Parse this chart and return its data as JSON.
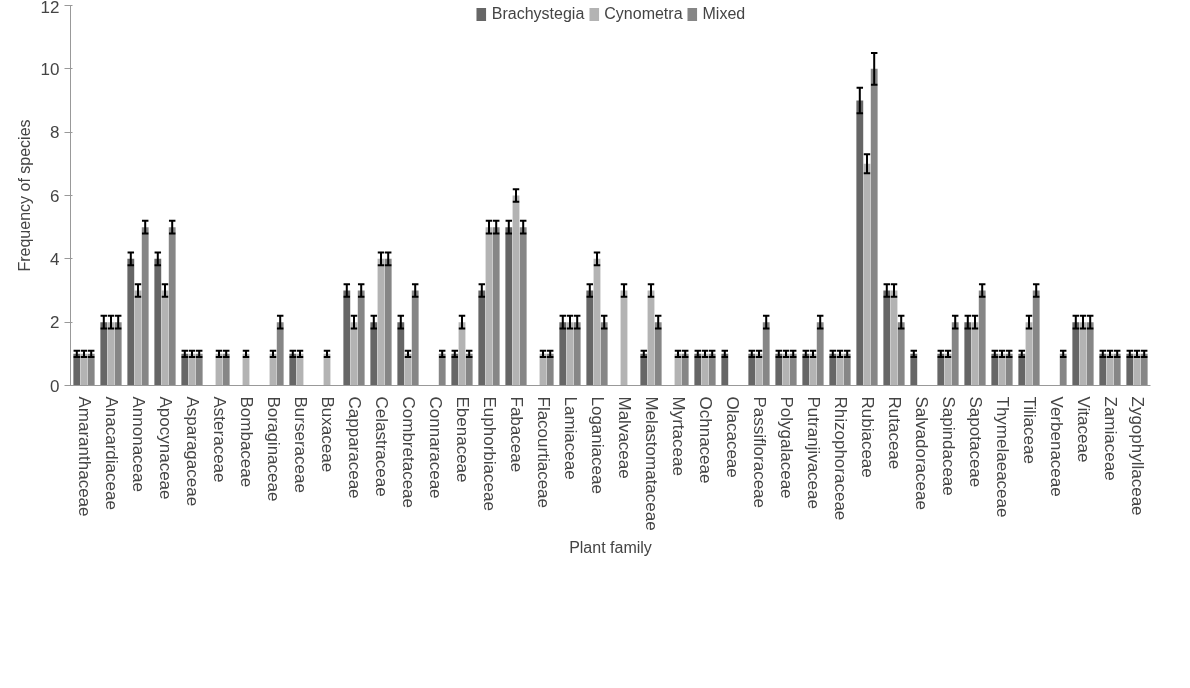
{
  "chart_data": {
    "type": "bar",
    "xlabel": "Plant family",
    "ylabel": "Frequency of species",
    "categories": [
      "Amaranthaceae",
      "Anacardiaceae",
      "Annonaceae",
      "Apocynaceae",
      "Asparagaceae",
      "Asteraceae",
      "Bombaceae",
      "Boraginaceae",
      "Burseraceae",
      "Buxaceae",
      "Capparaceae",
      "Celastraceae",
      "Combretaceae",
      "Connaraceae",
      "Ebenaceae",
      "Euphorbiaceae",
      "Fabaceae",
      "Flacourtiaceae",
      "Lamiaceae",
      "Loganiaceae",
      "Malvaceae",
      "Melastomataceae",
      "Myrtaceae",
      "Ochnaceae",
      "Olacaceae",
      "Passifloraceae",
      "Polygalaceae",
      "Putranjivaceae",
      "Rhizophoraceae",
      "Rubiaceae",
      "Rutaceae",
      "Salvadoraceae",
      "Sapindaceae",
      "Sapotaceae",
      "Thymelaeaceae",
      "Tiliaceae",
      "Verbenaceae",
      "Vitaceae",
      "Zamiaceae",
      "Zygophyllaceae"
    ],
    "series": [
      {
        "name": "Brachystegia",
        "color": "#666666",
        "values": [
          1,
          2,
          4,
          4,
          1,
          null,
          null,
          null,
          1,
          null,
          3,
          2,
          2,
          null,
          1,
          3,
          5,
          null,
          2,
          3,
          null,
          1,
          null,
          1,
          1,
          1,
          1,
          1,
          1,
          9,
          3,
          1,
          1,
          2,
          1,
          1,
          null,
          2,
          1,
          1
        ],
        "errors": [
          0.1,
          0.2,
          0.2,
          0.2,
          0.1,
          null,
          null,
          null,
          0.1,
          null,
          0.2,
          0.2,
          0.2,
          null,
          0.1,
          0.2,
          0.2,
          null,
          0.2,
          0.2,
          null,
          0.1,
          null,
          0.1,
          0.1,
          0.1,
          0.1,
          0.1,
          0.1,
          0.4,
          0.2,
          0.1,
          0.1,
          0.2,
          0.1,
          0.1,
          null,
          0.2,
          0.1,
          0.1
        ]
      },
      {
        "name": "Cynometra",
        "color": "#b3b3b3",
        "values": [
          1,
          2,
          3,
          3,
          1,
          1,
          1,
          1,
          1,
          1,
          2,
          4,
          1,
          null,
          2,
          5,
          6,
          1,
          2,
          4,
          3,
          3,
          1,
          1,
          null,
          1,
          1,
          1,
          1,
          7,
          3,
          null,
          1,
          2,
          1,
          2,
          null,
          2,
          1,
          1
        ],
        "errors": [
          0.1,
          0.2,
          0.2,
          0.2,
          0.1,
          0.1,
          0.1,
          0.1,
          0.1,
          0.1,
          0.2,
          0.2,
          0.1,
          null,
          0.2,
          0.2,
          0.2,
          0.1,
          0.2,
          0.2,
          0.2,
          0.2,
          0.1,
          0.1,
          null,
          0.1,
          0.1,
          0.1,
          0.1,
          0.3,
          0.2,
          null,
          0.1,
          0.2,
          0.1,
          0.2,
          null,
          0.2,
          0.1,
          0.1
        ]
      },
      {
        "name": "Mixed",
        "color": "#868686",
        "values": [
          1,
          2,
          5,
          5,
          1,
          1,
          null,
          2,
          null,
          null,
          3,
          4,
          3,
          1,
          1,
          5,
          5,
          1,
          2,
          2,
          null,
          2,
          1,
          1,
          null,
          2,
          1,
          2,
          1,
          10,
          2,
          null,
          2,
          3,
          1,
          3,
          1,
          2,
          1,
          1
        ],
        "errors": [
          0.1,
          0.2,
          0.2,
          0.2,
          0.1,
          0.1,
          null,
          0.2,
          null,
          null,
          0.2,
          0.2,
          0.2,
          0.1,
          0.1,
          0.2,
          0.2,
          0.1,
          0.2,
          0.2,
          null,
          0.2,
          0.1,
          0.1,
          null,
          0.2,
          0.1,
          0.2,
          0.1,
          0.5,
          0.2,
          null,
          0.2,
          0.2,
          0.1,
          0.2,
          0.1,
          0.2,
          0.1,
          0.1
        ]
      }
    ],
    "ylim": [
      0,
      12
    ],
    "yticks": [
      0,
      2,
      4,
      6,
      8,
      10,
      12
    ],
    "grid": false,
    "legend": "top"
  }
}
